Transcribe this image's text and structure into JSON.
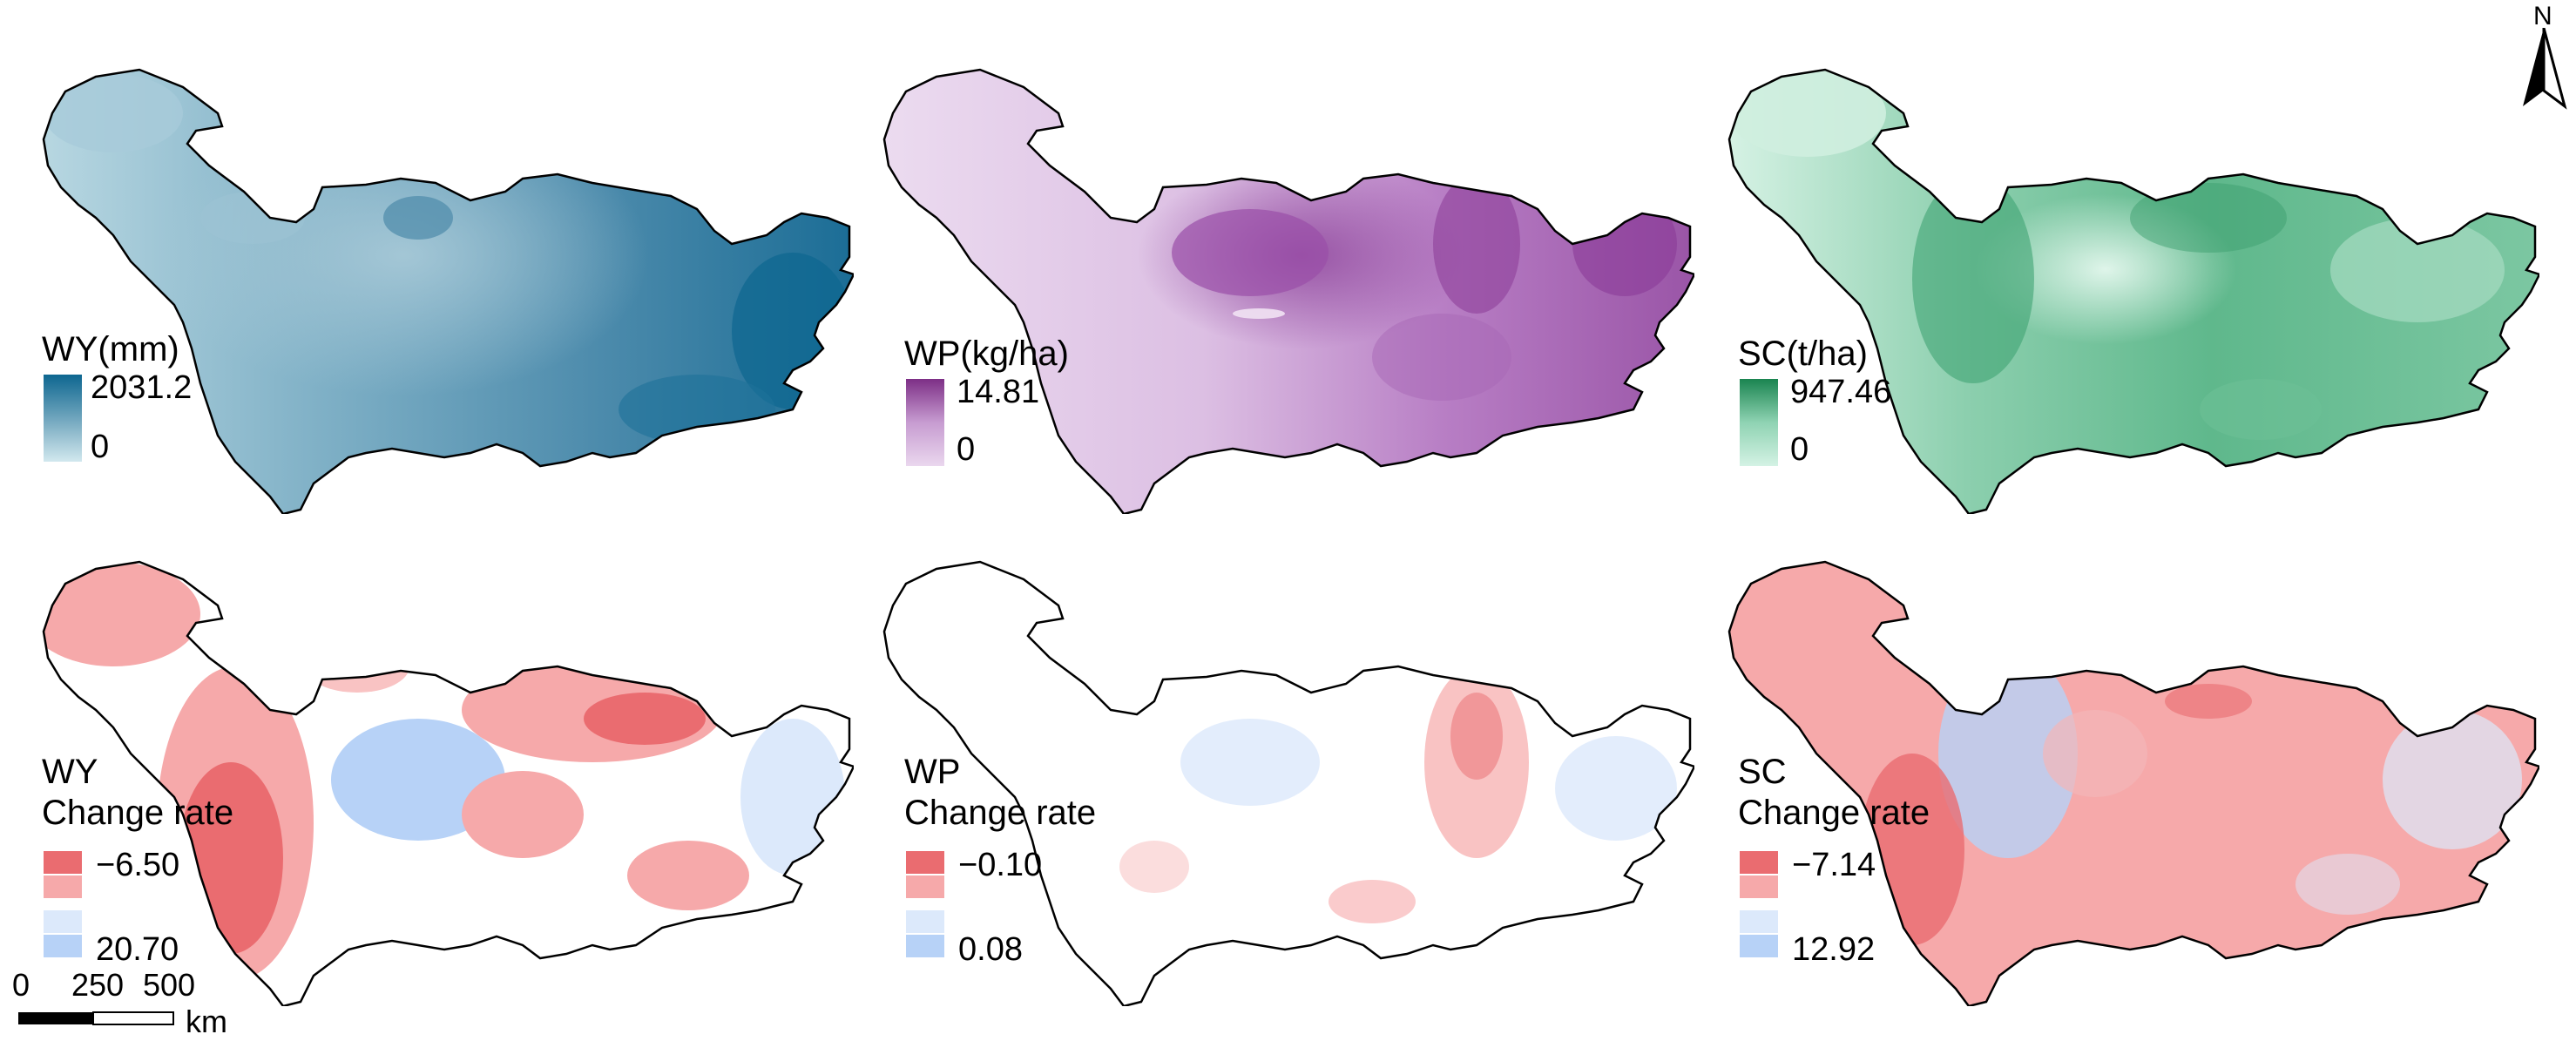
{
  "north_arrow": {
    "label": "N"
  },
  "scale_bar": {
    "ticks": [
      "0",
      "250",
      "500"
    ],
    "unit": "km"
  },
  "panels": {
    "wy": {
      "title": "WY(mm)",
      "max": "2031.2",
      "min": "0",
      "colors": {
        "low": "#d2e8ee",
        "mid": "#6fa5bd",
        "high": "#0d6690"
      }
    },
    "wp": {
      "title": "WP(kg/ha)",
      "max": "14.81",
      "min": "0",
      "colors": {
        "low": "#ead7ee",
        "mid": "#c79cd1",
        "high": "#7d2f86"
      }
    },
    "sc": {
      "title": "SC(t/ha)",
      "max": "947.46",
      "min": "0",
      "colors": {
        "low": "#d4f2e4",
        "mid": "#8fd3b3",
        "high": "#1a8450"
      }
    },
    "wy_change": {
      "title_line1": "WY",
      "title_line2": "Change rate",
      "neg": "−6.50",
      "pos": "20.70",
      "colors": {
        "neg_strong": "#ea6c70",
        "neg_light": "#f6a9aa",
        "pos_light": "#dce9fb",
        "pos_strong": "#b7d2f7"
      }
    },
    "wp_change": {
      "title_line1": "WP",
      "title_line2": "Change rate",
      "neg": "−0.10",
      "pos": "0.08",
      "colors": {
        "neg_strong": "#ea6c70",
        "neg_light": "#f6a9aa",
        "pos_light": "#dce9fb",
        "pos_strong": "#b7d2f7"
      }
    },
    "sc_change": {
      "title_line1": "SC",
      "title_line2": "Change rate",
      "neg": "−7.14",
      "pos": "12.92",
      "colors": {
        "neg_strong": "#ea6c70",
        "neg_light": "#f6a9aa",
        "pos_light": "#dce9fb",
        "pos_strong": "#b7d2f7"
      }
    }
  }
}
